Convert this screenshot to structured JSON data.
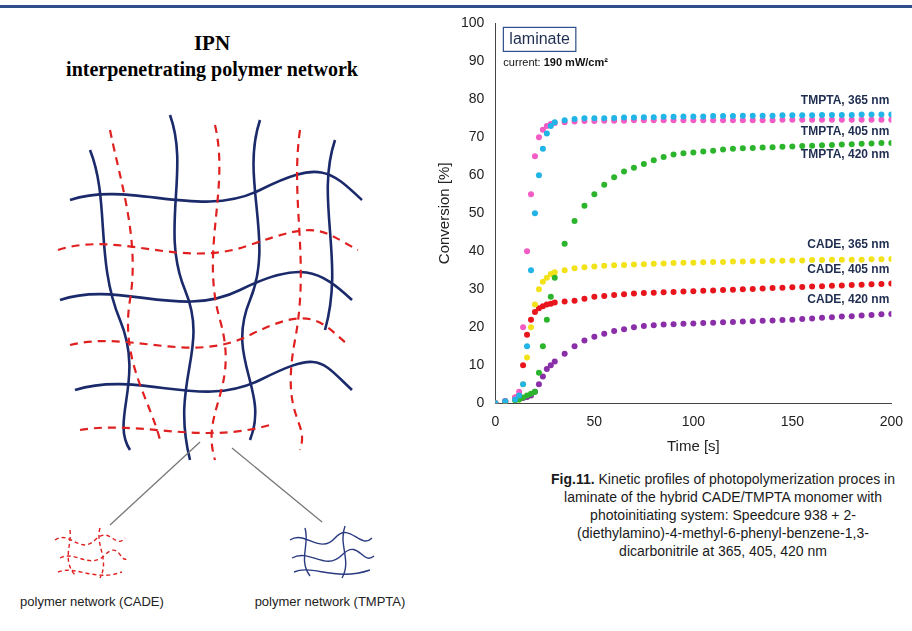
{
  "chart_data": {
    "type": "scatter",
    "title": "laminate",
    "subtitle": "current: 190 mW/cm²",
    "x_label": "Time [s]",
    "y_label": "Conversion [%]",
    "x": [
      0,
      5,
      10,
      12,
      14,
      16,
      18,
      20,
      22,
      24,
      26,
      28,
      30,
      35,
      40,
      45,
      50,
      55,
      60,
      65,
      70,
      75,
      80,
      85,
      90,
      95,
      100,
      105,
      110,
      115,
      120,
      125,
      130,
      135,
      140,
      145,
      150,
      155,
      160,
      165,
      170,
      175,
      180,
      185,
      190,
      195,
      200
    ],
    "xlim": [
      0,
      200
    ],
    "xticks": [
      0,
      50,
      100,
      150,
      200
    ],
    "ylim": [
      0,
      100
    ],
    "yticks": [
      0,
      10,
      20,
      30,
      40,
      50,
      60,
      70,
      80,
      90,
      100
    ],
    "grid": false,
    "marker": "circle",
    "series": [
      {
        "name": "TMPTA, 365 nm",
        "color": "#21b4e6",
        "values": [
          0,
          0.5,
          1,
          2,
          5,
          15,
          35,
          50,
          60,
          67,
          71,
          73,
          74,
          74.5,
          74.8,
          75,
          75,
          75,
          75.1,
          75.2,
          75.2,
          75.3,
          75.3,
          75.4,
          75.4,
          75.5,
          75.5,
          75.5,
          75.6,
          75.6,
          75.6,
          75.7,
          75.7,
          75.7,
          75.7,
          75.8,
          75.8,
          75.8,
          75.8,
          75.9,
          75.9,
          75.9,
          75.9,
          76,
          76,
          76,
          76
        ]
      },
      {
        "name": "TMPTA, 405 nm",
        "color": "#f25cc4",
        "values": [
          0,
          0.5,
          1.5,
          3,
          20,
          40,
          55,
          65,
          70,
          72,
          73,
          73.5,
          73.8,
          74,
          74.2,
          74.3,
          74.3,
          74.4,
          74.4,
          74.4,
          74.5,
          74.5,
          74.5,
          74.5,
          74.5,
          74.5,
          74.5,
          74.5,
          74.5,
          74.5,
          74.5,
          74.5,
          74.5,
          74.5,
          74.5,
          74.6,
          74.6,
          74.6,
          74.6,
          74.6,
          74.6,
          74.6,
          74.6,
          74.6,
          74.6,
          74.6,
          74.6
        ]
      },
      {
        "name": "TMPTA, 420 nm",
        "color": "#2cb52c",
        "values": [
          0,
          0.3,
          0.8,
          1,
          1.5,
          2,
          2.5,
          3,
          8,
          15,
          22,
          28,
          33,
          42,
          48,
          52,
          55,
          57.5,
          59.5,
          61,
          62,
          63,
          64,
          64.8,
          65.5,
          65.8,
          66,
          66.3,
          66.5,
          66.8,
          67,
          67.1,
          67.2,
          67.3,
          67.4,
          67.5,
          67.6,
          67.7,
          67.8,
          67.9,
          68,
          68.1,
          68.2,
          68.3,
          68.4,
          68.5,
          68.5
        ]
      },
      {
        "name": "CADE, 365 nm",
        "color": "#f2e21a",
        "values": [
          0,
          0.3,
          0.8,
          1,
          5,
          12,
          20,
          26,
          30,
          32,
          33,
          34,
          34.5,
          35,
          35.5,
          35.8,
          36,
          36.2,
          36.3,
          36.4,
          36.5,
          36.6,
          36.7,
          36.8,
          36.9,
          37,
          37,
          37.1,
          37.2,
          37.2,
          37.3,
          37.3,
          37.4,
          37.4,
          37.5,
          37.5,
          37.6,
          37.6,
          37.7,
          37.7,
          37.8,
          37.8,
          37.8,
          37.8,
          37.9,
          37.9,
          38
        ]
      },
      {
        "name": "CADE, 405 nm",
        "color": "#e8161c",
        "values": [
          0,
          0.5,
          1.5,
          2,
          10,
          18,
          22,
          24,
          25,
          25.5,
          26,
          26.2,
          26.5,
          26.8,
          27,
          27.5,
          28,
          28.2,
          28.5,
          28.7,
          28.9,
          29,
          29.1,
          29.2,
          29.3,
          29.4,
          29.5,
          29.6,
          29.7,
          29.8,
          29.9,
          30,
          30.1,
          30.2,
          30.3,
          30.4,
          30.5,
          30.6,
          30.7,
          30.8,
          30.9,
          31,
          31.1,
          31.2,
          31.3,
          31.4,
          31.5
        ]
      },
      {
        "name": "CADE, 420 nm",
        "color": "#8a2fa8",
        "values": [
          0,
          0.5,
          1,
          1.2,
          1.4,
          1.6,
          2,
          3,
          5,
          7,
          9,
          10,
          11,
          13,
          15,
          16.5,
          17.5,
          18.3,
          19,
          19.5,
          20,
          20.3,
          20.5,
          20.7,
          20.8,
          20.9,
          21,
          21.1,
          21.2,
          21.3,
          21.4,
          21.5,
          21.6,
          21.7,
          21.8,
          21.9,
          22,
          22.2,
          22.3,
          22.5,
          22.6,
          22.8,
          22.9,
          23.1,
          23.2,
          23.4,
          23.5
        ]
      }
    ]
  },
  "diagram": {
    "title": "IPN",
    "subtitle": "interpenetrating polymer network",
    "nodes": [
      {
        "label": "polymer network (CADE)"
      },
      {
        "label": "polymer network (TMPTA)"
      }
    ]
  },
  "caption": {
    "label": "Fig.11.",
    "text": "Kinetic profiles of photopolymerization proces in laminate of the hybrid CADE/TMPTA monomer with photoinitiating system: Speedcure 938 + 2-(diethylamino)-4-methyl-6-phenyl-benzene-1,3-dicarbonitrile at 365, 405, 420 nm"
  }
}
